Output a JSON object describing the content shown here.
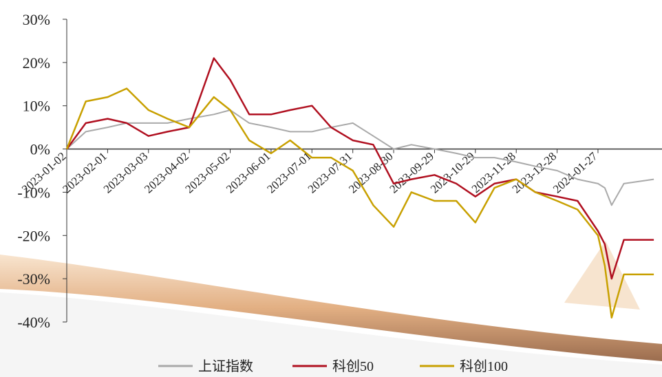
{
  "chart_data": {
    "type": "line",
    "x": [
      "2023-01-02",
      "2023-01-16",
      "2023-02-01",
      "2023-02-15",
      "2023-03-03",
      "2023-03-17",
      "2023-04-02",
      "2023-04-20",
      "2023-05-02",
      "2023-05-16",
      "2023-06-01",
      "2023-06-15",
      "2023-07-01",
      "2023-07-15",
      "2023-07-31",
      "2023-08-15",
      "2023-08-30",
      "2023-09-12",
      "2023-09-29",
      "2023-10-15",
      "2023-10-29",
      "2023-11-12",
      "2023-11-28",
      "2023-12-12",
      "2023-12-28",
      "2024-01-12",
      "2024-01-27",
      "2024-02-01",
      "2024-02-06",
      "2024-02-15",
      "2024-03-08"
    ],
    "series": [
      {
        "name": "上证指数",
        "color": "#a9a9a9",
        "values": [
          0,
          4,
          5,
          6,
          6,
          6,
          7,
          8,
          9,
          6,
          5,
          4,
          4,
          5,
          6,
          3,
          0,
          1,
          0,
          -1,
          -2,
          -2,
          -3,
          -4,
          -5,
          -7,
          -8,
          -9,
          -13,
          -8,
          -7
        ]
      },
      {
        "name": "科创50",
        "color": "#b01020",
        "values": [
          0,
          6,
          7,
          6,
          3,
          4,
          5,
          21,
          16,
          8,
          8,
          9,
          10,
          5,
          2,
          1,
          -8,
          -7,
          -6,
          -8,
          -11,
          -8,
          -7,
          -10,
          -11,
          -12,
          -19,
          -22,
          -30,
          -21,
          -21
        ]
      },
      {
        "name": "科创100",
        "color": "#c8a000",
        "values": [
          0,
          11,
          12,
          14,
          9,
          7,
          5,
          12,
          9,
          2,
          -1,
          2,
          -2,
          -2,
          -5,
          -13,
          -18,
          -10,
          -12,
          -12,
          -17,
          -9,
          -7,
          -10,
          -12,
          -14,
          -20,
          -27,
          -39,
          -29,
          -29
        ]
      }
    ],
    "xlim": [
      "2023-01-02",
      "2024-03-14"
    ],
    "xticks": [
      "2023-01-02",
      "2023-02-01",
      "2023-03-03",
      "2023-04-02",
      "2023-05-02",
      "2023-06-01",
      "2023-07-01",
      "2023-07-31",
      "2023-08-30",
      "2023-09-29",
      "2023-10-29",
      "2023-11-28",
      "2023-12-28",
      "2024-01-27"
    ],
    "ylim": [
      -40,
      30
    ],
    "yticks": [
      {
        "value": -40,
        "label": "-40%"
      },
      {
        "value": -30,
        "label": "-30%"
      },
      {
        "value": -20,
        "label": "-20%"
      },
      {
        "value": -10,
        "label": "-10%"
      },
      {
        "value": 0,
        "label": "0%"
      },
      {
        "value": 10,
        "label": "10%"
      },
      {
        "value": 20,
        "label": "20%"
      },
      {
        "value": 30,
        "label": "30%"
      }
    ],
    "legend": "bottom"
  }
}
